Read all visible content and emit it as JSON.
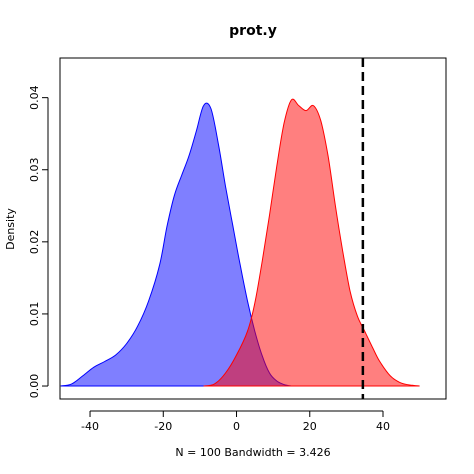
{
  "chart_data": {
    "type": "area",
    "title": "prot.y",
    "xlabel": "N = 100   Bandwidth = 3.426",
    "ylabel": "Density",
    "xlim": [
      -48.2,
      57.2
    ],
    "ylim": [
      -0.0018,
      0.0455
    ],
    "x_ticks": [
      -40,
      -20,
      0,
      20,
      40
    ],
    "y_ticks": [
      0.0,
      0.01,
      0.02,
      0.03,
      0.04
    ],
    "x_tick_labels": [
      "-40",
      "-20",
      "0",
      "20",
      "40"
    ],
    "y_tick_labels": [
      "0.00",
      "0.01",
      "0.02",
      "0.03",
      "0.04"
    ],
    "grid": false,
    "reference_line": {
      "x": 34.5,
      "style": "dashed",
      "color": "#000000"
    },
    "series": [
      {
        "color": "#0000ff",
        "fill_alpha": 0.5,
        "points": [
          [
            -48,
            0
          ],
          [
            -45,
            0.0003
          ],
          [
            -42,
            0.0014
          ],
          [
            -39,
            0.0026
          ],
          [
            -36,
            0.0034
          ],
          [
            -33,
            0.0043
          ],
          [
            -30,
            0.0059
          ],
          [
            -27,
            0.0083
          ],
          [
            -24,
            0.0118
          ],
          [
            -21,
            0.0168
          ],
          [
            -19,
            0.0221
          ],
          [
            -17,
            0.0264
          ],
          [
            -15,
            0.0292
          ],
          [
            -13,
            0.0319
          ],
          [
            -11,
            0.0353
          ],
          [
            -9,
            0.0389
          ],
          [
            -7,
            0.0385
          ],
          [
            -5,
            0.0337
          ],
          [
            -3,
            0.0277
          ],
          [
            -1,
            0.0222
          ],
          [
            1,
            0.0168
          ],
          [
            3,
            0.0118
          ],
          [
            5,
            0.0076
          ],
          [
            7,
            0.0042
          ],
          [
            9,
            0.0018
          ],
          [
            11,
            0.0007
          ],
          [
            13,
            0.0002
          ],
          [
            15,
            0
          ]
        ]
      },
      {
        "color": "#ff0000",
        "fill_alpha": 0.5,
        "points": [
          [
            -9,
            0
          ],
          [
            -6,
            0.0003
          ],
          [
            -3,
            0.0018
          ],
          [
            0,
            0.0043
          ],
          [
            3,
            0.0076
          ],
          [
            5,
            0.0115
          ],
          [
            7,
            0.0173
          ],
          [
            9,
            0.0237
          ],
          [
            11,
            0.0305
          ],
          [
            13,
            0.0365
          ],
          [
            15,
            0.0397
          ],
          [
            17,
            0.0389
          ],
          [
            19,
            0.0382
          ],
          [
            21,
            0.0389
          ],
          [
            23,
            0.0368
          ],
          [
            25,
            0.0319
          ],
          [
            27,
            0.025
          ],
          [
            29,
            0.0187
          ],
          [
            31,
            0.0132
          ],
          [
            33,
            0.0097
          ],
          [
            35,
            0.0076
          ],
          [
            37,
            0.0055
          ],
          [
            39,
            0.0035
          ],
          [
            42,
            0.0014
          ],
          [
            45,
            0.0004
          ],
          [
            48,
            0.0001
          ],
          [
            50,
            0
          ]
        ]
      }
    ]
  }
}
